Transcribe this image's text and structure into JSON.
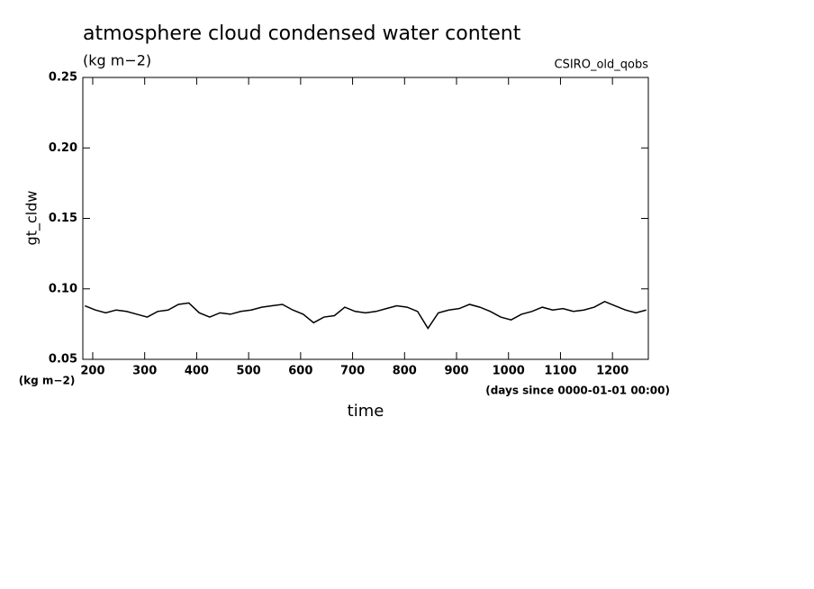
{
  "chart_data": {
    "type": "line",
    "title": "atmosphere cloud condensed water content",
    "subtitle": "(kg m−2)",
    "source_label": "CSIRO_old_qobs",
    "y_label": "gt_cldw",
    "y_unit_label": "(kg m−2)",
    "x_unit_label": "(days since 0000-01-01 00:00)",
    "x_label": "time",
    "xlim": [
      181,
      1269
    ],
    "ylim": [
      0.05,
      0.25
    ],
    "xticks": [
      200,
      300,
      400,
      500,
      600,
      700,
      800,
      900,
      1000,
      1100,
      1200
    ],
    "yticks": [
      0.05,
      {
        "value": 0.1,
        "label": "0.10"
      },
      0.15,
      {
        "value": 0.2,
        "label": "0.20"
      },
      0.25
    ],
    "x": [
      185,
      205,
      225,
      245,
      265,
      285,
      305,
      325,
      345,
      365,
      385,
      405,
      425,
      445,
      465,
      485,
      505,
      525,
      545,
      565,
      585,
      605,
      625,
      645,
      665,
      685,
      705,
      725,
      745,
      765,
      785,
      805,
      825,
      845,
      865,
      885,
      905,
      925,
      945,
      965,
      985,
      1005,
      1025,
      1045,
      1065,
      1085,
      1105,
      1125,
      1145,
      1165,
      1185,
      1205,
      1225,
      1245,
      1265
    ],
    "series": [
      {
        "color": "#000000",
        "values": [
          0.088,
          0.085,
          0.083,
          0.085,
          0.084,
          0.082,
          0.08,
          0.084,
          0.085,
          0.089,
          0.09,
          0.083,
          0.08,
          0.083,
          0.082,
          0.084,
          0.085,
          0.087,
          0.088,
          0.089,
          0.085,
          0.082,
          0.076,
          0.08,
          0.081,
          0.087,
          0.084,
          0.083,
          0.084,
          0.086,
          0.088,
          0.087,
          0.084,
          0.072,
          0.083,
          0.085,
          0.086,
          0.089,
          0.087,
          0.084,
          0.08,
          0.078,
          0.082,
          0.084,
          0.087,
          0.085,
          0.086,
          0.084,
          0.085,
          0.087,
          0.091,
          0.088,
          0.085,
          0.083,
          0.085
        ]
      }
    ]
  }
}
